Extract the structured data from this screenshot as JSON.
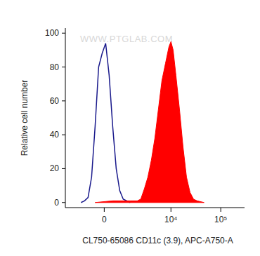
{
  "chart_data": {
    "type": "area",
    "x_label": "CL750-65086 CD11c (3.9), APC-A750-A",
    "y_label": "Relative cell number",
    "annotations": [
      "WWW.PTGLAB.COM"
    ],
    "log": "x",
    "xlim": [
      -2700,
      300000
    ],
    "xticks": [
      0,
      {
        "value": 10000,
        "label": "10⁴"
      },
      {
        "value": 100000,
        "label": "10⁵"
      }
    ],
    "ylim": [
      -3,
      103
    ],
    "yticks": [
      0,
      20,
      40,
      60,
      80,
      100
    ],
    "series": [
      {
        "type": "line",
        "color": "#1a1a8c",
        "x": [
          -1190,
          -960,
          -755,
          -570,
          -400,
          -242,
          -90,
          60,
          211,
          368,
          535,
          716,
          915,
          1139,
          1390
        ],
        "values": [
          0,
          1,
          3,
          15,
          45,
          80,
          88,
          94,
          75,
          45,
          20,
          7,
          2,
          1,
          0
        ]
      },
      {
        "type": "area",
        "color": "#ff0000",
        "x": [
          -400,
          368,
          1390,
          2020,
          2400,
          2855,
          3390,
          4000,
          4725,
          5570,
          6570,
          7740,
          9110,
          10000,
          11080,
          12600,
          14850,
          17470,
          20550,
          24190,
          28450,
          33450,
          46240
        ],
        "values": [
          0,
          1,
          1,
          1,
          2,
          8,
          15,
          25,
          38,
          55,
          72,
          82,
          92,
          95,
          90,
          75,
          55,
          33,
          15,
          6,
          2,
          1,
          0
        ]
      }
    ]
  }
}
